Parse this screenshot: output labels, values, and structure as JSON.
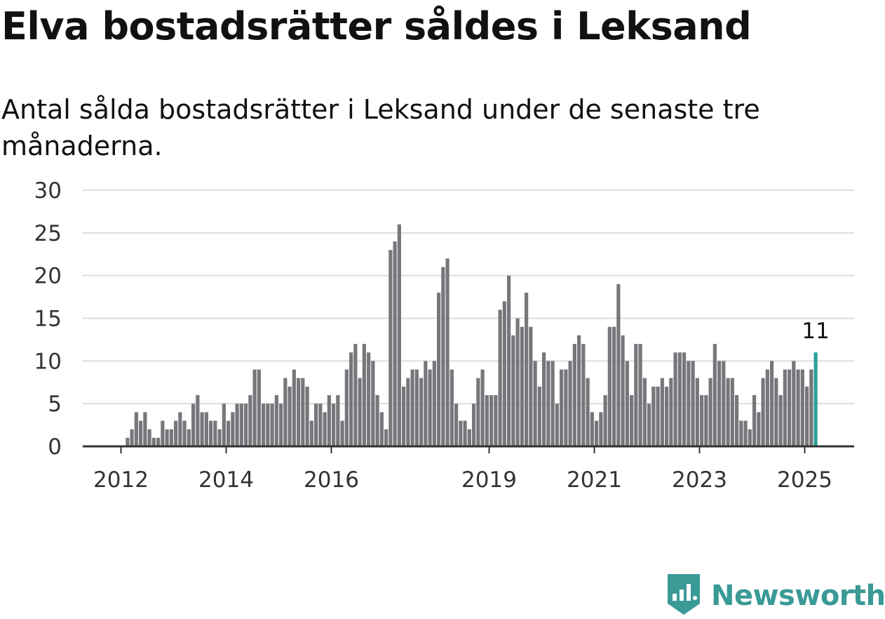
{
  "title": "Elva bostadsrätter såldes i Leksand",
  "subtitle": "Antal sålda bostadsrätter i Leksand under de senaste tre månaderna.",
  "brand": {
    "name": "Newsworthy",
    "icon": "newsworthy-logo-icon",
    "color": "#3a9a96"
  },
  "colors": {
    "bar": "#77767b",
    "highlight": "#2aa198",
    "grid": "#dddddd",
    "axis": "#333333"
  },
  "chart_data": {
    "type": "bar",
    "title": "Elva bostadsrätter såldes i Leksand",
    "subtitle": "Antal sålda bostadsrätter i Leksand under de senaste tre månaderna.",
    "xlabel": "",
    "ylabel": "",
    "ylim": [
      0,
      30
    ],
    "yticks": [
      0,
      5,
      10,
      15,
      20,
      25,
      30
    ],
    "grid": true,
    "x_start": "2012-01",
    "x_end": "2025-04",
    "xtick_labels": [
      "2012",
      "2014",
      "2016",
      "2019",
      "2021",
      "2023",
      "2025"
    ],
    "highlight_annotation": "11",
    "values": [
      0,
      1,
      2,
      4,
      3,
      4,
      2,
      1,
      1,
      3,
      2,
      2,
      3,
      4,
      3,
      2,
      5,
      6,
      4,
      4,
      3,
      3,
      2,
      5,
      3,
      4,
      5,
      5,
      5,
      6,
      9,
      9,
      5,
      5,
      5,
      6,
      5,
      8,
      7,
      9,
      8,
      8,
      7,
      3,
      5,
      5,
      4,
      6,
      5,
      6,
      3,
      9,
      11,
      12,
      8,
      12,
      11,
      10,
      6,
      4,
      2,
      23,
      24,
      26,
      7,
      8,
      9,
      9,
      8,
      10,
      9,
      10,
      18,
      21,
      22,
      9,
      5,
      3,
      3,
      2,
      5,
      8,
      9,
      6,
      6,
      6,
      16,
      17,
      20,
      13,
      15,
      14,
      18,
      14,
      10,
      7,
      11,
      10,
      10,
      5,
      9,
      9,
      10,
      12,
      13,
      12,
      8,
      4,
      3,
      4,
      6,
      14,
      14,
      19,
      13,
      10,
      6,
      12,
      12,
      8,
      5,
      7,
      7,
      8,
      7,
      8,
      11,
      11,
      11,
      10,
      10,
      8,
      6,
      6,
      8,
      12,
      10,
      10,
      8,
      8,
      6,
      3,
      3,
      2,
      6,
      4,
      8,
      9,
      10,
      8,
      6,
      9,
      9,
      10,
      9,
      9,
      7,
      9,
      11
    ]
  }
}
